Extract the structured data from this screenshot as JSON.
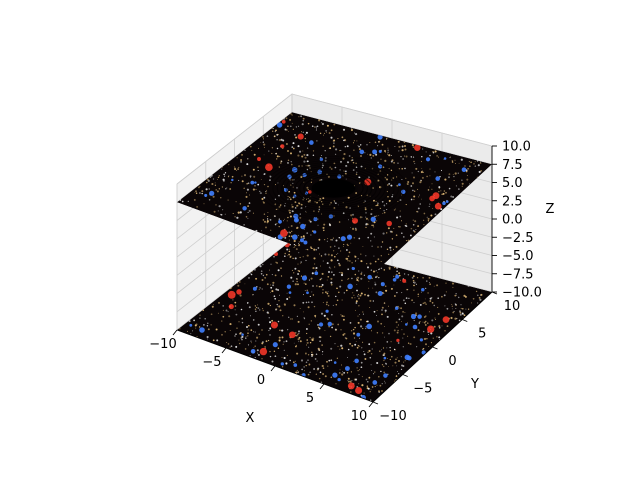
{
  "chart_data": {
    "type": "surface3d",
    "title": "",
    "xlabel": "X",
    "ylabel": "Y",
    "zlabel": "Z",
    "xlim": [
      -10,
      10
    ],
    "ylim": [
      -10,
      10
    ],
    "zlim": [
      -10,
      10
    ],
    "x_ticks": [
      "−10",
      "−5",
      "0",
      "5",
      "10"
    ],
    "y_ticks": [
      "−10",
      "−5",
      "0",
      "5",
      "10"
    ],
    "z_ticks": [
      "−10.0",
      "−7.5",
      "−5.0",
      "−2.5",
      "0.0",
      "2.5",
      "5.0",
      "7.5",
      "10.0"
    ],
    "grid": true,
    "planes": [
      {
        "name": "lower",
        "z": -10,
        "texture": "starfield"
      },
      {
        "name": "upper",
        "z": 7.5,
        "texture": "starfield-black-hole"
      }
    ],
    "central_sphere": {
      "x": 0,
      "y": 0,
      "z": 0,
      "color": "#111111"
    },
    "colors": {
      "space": "#0a0506",
      "star_warm": "#e8c07a",
      "star_white": "#f2f2f2",
      "star_blue": "#3f7fff",
      "star_red": "#ff3a2a"
    }
  }
}
